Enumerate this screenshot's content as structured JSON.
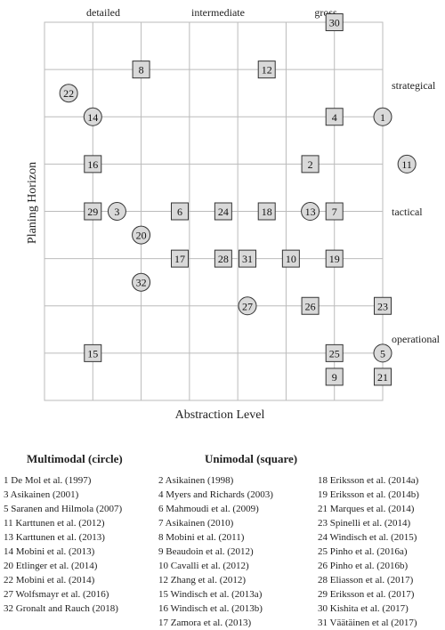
{
  "chart_data": {
    "type": "scatter",
    "x_top_labels": [
      "detailed",
      "intermediate",
      "gross"
    ],
    "y_right_labels": [
      "strategical",
      "tactical",
      "operational"
    ],
    "xlabel": "Abstraction Level",
    "ylabel": "Planing Horizon",
    "grid": true,
    "columns": 7,
    "rows": 8,
    "points": [
      {
        "id": "30",
        "shape": "square",
        "x": 6,
        "y": 8
      },
      {
        "id": "8",
        "shape": "square",
        "x": 2,
        "y": 7
      },
      {
        "id": "12",
        "shape": "square",
        "x": 4.6,
        "y": 7
      },
      {
        "id": "22",
        "shape": "circle",
        "x": 0.5,
        "y": 6.5
      },
      {
        "id": "14",
        "shape": "circle",
        "x": 1,
        "y": 6
      },
      {
        "id": "4",
        "shape": "square",
        "x": 6,
        "y": 6
      },
      {
        "id": "1",
        "shape": "circle",
        "x": 7,
        "y": 6
      },
      {
        "id": "16",
        "shape": "square",
        "x": 1,
        "y": 5
      },
      {
        "id": "2",
        "shape": "square",
        "x": 5.5,
        "y": 5
      },
      {
        "id": "11",
        "shape": "circle",
        "x": 7.5,
        "y": 5
      },
      {
        "id": "29",
        "shape": "square",
        "x": 1,
        "y": 4
      },
      {
        "id": "3",
        "shape": "circle",
        "x": 1.5,
        "y": 4
      },
      {
        "id": "6",
        "shape": "square",
        "x": 2.8,
        "y": 4
      },
      {
        "id": "24",
        "shape": "square",
        "x": 3.7,
        "y": 4
      },
      {
        "id": "18",
        "shape": "square",
        "x": 4.6,
        "y": 4
      },
      {
        "id": "13",
        "shape": "circle",
        "x": 5.5,
        "y": 4
      },
      {
        "id": "7",
        "shape": "square",
        "x": 6,
        "y": 4
      },
      {
        "id": "20",
        "shape": "circle",
        "x": 2,
        "y": 3.5
      },
      {
        "id": "17",
        "shape": "square",
        "x": 2.8,
        "y": 3
      },
      {
        "id": "28",
        "shape": "square",
        "x": 3.7,
        "y": 3
      },
      {
        "id": "31",
        "shape": "square",
        "x": 4.2,
        "y": 3
      },
      {
        "id": "10",
        "shape": "square",
        "x": 5.1,
        "y": 3
      },
      {
        "id": "19",
        "shape": "square",
        "x": 6,
        "y": 3
      },
      {
        "id": "32",
        "shape": "circle",
        "x": 2,
        "y": 2.5
      },
      {
        "id": "27",
        "shape": "circle",
        "x": 4.2,
        "y": 2
      },
      {
        "id": "26",
        "shape": "square",
        "x": 5.5,
        "y": 2
      },
      {
        "id": "23",
        "shape": "square",
        "x": 7,
        "y": 2
      },
      {
        "id": "15",
        "shape": "square",
        "x": 1,
        "y": 1
      },
      {
        "id": "25",
        "shape": "square",
        "x": 6,
        "y": 1
      },
      {
        "id": "5",
        "shape": "circle",
        "x": 7,
        "y": 1
      },
      {
        "id": "9",
        "shape": "square",
        "x": 6,
        "y": 0.5
      },
      {
        "id": "21",
        "shape": "square",
        "x": 7,
        "y": 0.5
      }
    ]
  },
  "legend": {
    "multimodal_title": "Multimodal (circle)",
    "unimodal_title": "Unimodal (square)",
    "multimodal": [
      "1 De Mol et al. (1997)",
      "3 Asikainen (2001)",
      "5 Saranen and Hilmola (2007)",
      "11 Karttunen et al. (2012)",
      "13 Karttunen et al. (2013)",
      "14 Mobini et al. (2013)",
      "20 Etlinger et al. (2014)",
      "22 Mobini et al. (2014)",
      "27 Wolfsmayr et al. (2016)",
      "32 Gronalt and Rauch (2018)"
    ],
    "unimodal_a": [
      "2 Asikainen (1998)",
      "4 Myers and Richards (2003)",
      "6 Mahmoudi et al. (2009)",
      "7 Asikainen (2010)",
      "8 Mobini et al. (2011)",
      "9 Beaudoin et al. (2012)",
      "10 Cavalli et al. (2012)",
      "12 Zhang et al. (2012)",
      "15 Windisch et al. (2013a)",
      "16 Windisch et al. (2013b)",
      "17 Zamora et al. (2013)"
    ],
    "unimodal_b": [
      "18 Eriksson et al. (2014a)",
      "19 Eriksson et al. (2014b)",
      "21 Marques et al. (2014)",
      "23 Spinelli et al. (2014)",
      "24 Windisch et al. (2015)",
      "25 Pinho et al. (2016a)",
      "26 Pinho et al. (2016b)",
      "28 Eliasson et al. (2017)",
      "29 Eriksson et al. (2017)",
      "30 Kishita et al. (2017)",
      "31 Väätäinen et al (2017)"
    ]
  }
}
